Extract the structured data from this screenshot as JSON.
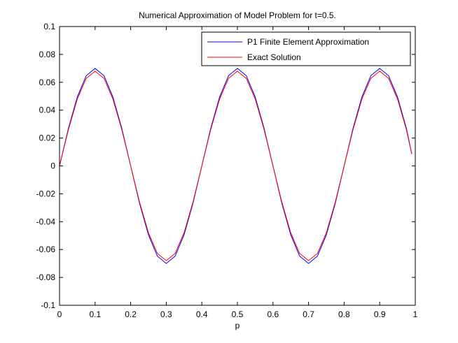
{
  "chart_data": {
    "type": "line",
    "title": "Numerical Approximation of Model Problem for t=0.5.",
    "xlabel": "p",
    "ylabel": "",
    "xlim": [
      0,
      1
    ],
    "ylim": [
      -0.1,
      0.1
    ],
    "xticks": [
      0,
      0.1,
      0.2,
      0.3,
      0.4,
      0.5,
      0.6,
      0.7,
      0.8,
      0.9,
      1
    ],
    "xtick_labels": [
      "0",
      "0.1",
      "0.2",
      "0.3",
      "0.4",
      "0.5",
      "0.6",
      "0.7",
      "0.8",
      "0.9",
      "1"
    ],
    "yticks": [
      -0.1,
      -0.08,
      -0.06,
      -0.04,
      -0.02,
      0,
      0.02,
      0.04,
      0.06,
      0.08,
      0.1
    ],
    "ytick_labels": [
      "-0.1",
      "-0.08",
      "-0.06",
      "-0.04",
      "-0.02",
      "0",
      "0.02",
      "0.04",
      "0.06",
      "0.08",
      "0.1"
    ],
    "grid": false,
    "legend_position": "top-right",
    "series": [
      {
        "name": "P1 Finite Element Approximation",
        "color": "#0000ff",
        "x": [
          0,
          0.025,
          0.05,
          0.075,
          0.1,
          0.125,
          0.15,
          0.175,
          0.2,
          0.225,
          0.25,
          0.275,
          0.3,
          0.325,
          0.35,
          0.375,
          0.4,
          0.425,
          0.45,
          0.475,
          0.5,
          0.525,
          0.55,
          0.575,
          0.6,
          0.625,
          0.65,
          0.675,
          0.7,
          0.725,
          0.75,
          0.775,
          0.8,
          0.825,
          0.85,
          0.875,
          0.9,
          0.925,
          0.95,
          0.975,
          0.99
        ],
        "y": [
          0,
          0.027,
          0.0495,
          0.0647,
          0.07,
          0.0647,
          0.0495,
          0.027,
          0,
          -0.027,
          -0.0495,
          -0.0647,
          -0.07,
          -0.0647,
          -0.0495,
          -0.027,
          0,
          0.027,
          0.0495,
          0.0647,
          0.07,
          0.0647,
          0.0495,
          0.027,
          0,
          -0.027,
          -0.0495,
          -0.0647,
          -0.07,
          -0.0647,
          -0.0495,
          -0.027,
          0,
          0.027,
          0.0495,
          0.0647,
          0.07,
          0.0647,
          0.0495,
          0.027,
          0.0088
        ]
      },
      {
        "name": "Exact Solution",
        "color": "#ff0000",
        "x": [
          0,
          0.025,
          0.05,
          0.075,
          0.1,
          0.125,
          0.15,
          0.175,
          0.2,
          0.225,
          0.25,
          0.275,
          0.3,
          0.325,
          0.35,
          0.375,
          0.4,
          0.425,
          0.45,
          0.475,
          0.5,
          0.525,
          0.55,
          0.575,
          0.6,
          0.625,
          0.65,
          0.675,
          0.7,
          0.725,
          0.75,
          0.775,
          0.8,
          0.825,
          0.85,
          0.875,
          0.9,
          0.925,
          0.95,
          0.975,
          0.99
        ],
        "y": [
          0,
          0.026,
          0.048,
          0.0628,
          0.068,
          0.0628,
          0.048,
          0.026,
          0,
          -0.026,
          -0.048,
          -0.0628,
          -0.068,
          -0.0628,
          -0.048,
          -0.026,
          0,
          0.026,
          0.048,
          0.0628,
          0.068,
          0.0628,
          0.048,
          0.026,
          0,
          -0.026,
          -0.048,
          -0.0628,
          -0.068,
          -0.0628,
          -0.048,
          -0.026,
          0,
          0.026,
          0.048,
          0.0628,
          0.068,
          0.0628,
          0.048,
          0.026,
          0.0085
        ]
      }
    ]
  }
}
